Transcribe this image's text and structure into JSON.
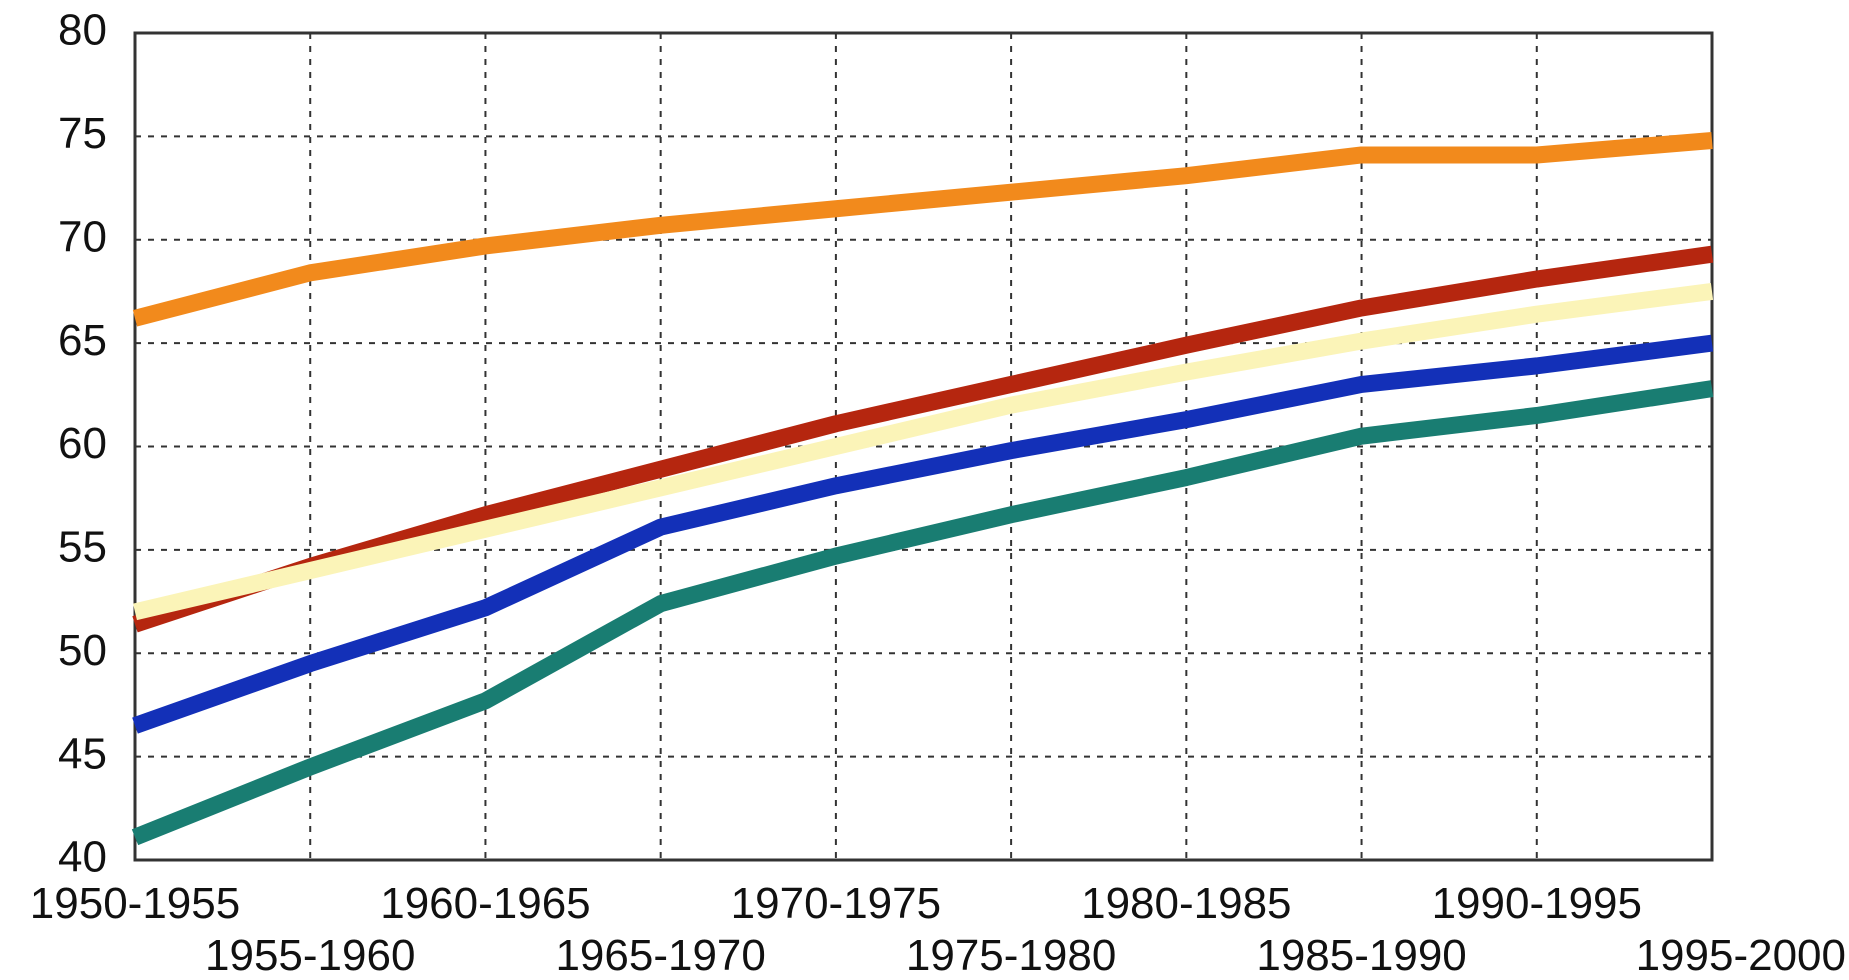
{
  "chart_data": {
    "type": "line",
    "x": [
      "1950-1955",
      "1955-1960",
      "1960-1965",
      "1965-1970",
      "1970-1975",
      "1975-1980",
      "1980-1985",
      "1985-1990",
      "1990-1995",
      "1995-2000"
    ],
    "ylim": [
      40,
      80
    ],
    "yticks": [
      40,
      45,
      50,
      55,
      60,
      65,
      70,
      75,
      80
    ],
    "grid": true,
    "series": [
      {
        "color": "#f28a1c",
        "values": [
          66.2,
          68.4,
          69.7,
          70.7,
          71.5,
          72.3,
          73.1,
          74.1,
          74.1,
          74.8
        ]
      },
      {
        "color": "#b5260f",
        "values": [
          51.4,
          54.2,
          56.7,
          58.9,
          61.1,
          63.0,
          64.9,
          66.7,
          68.1,
          69.3
        ]
      },
      {
        "color": "#fbf4b8",
        "values": [
          52.0,
          54.0,
          56.0,
          58.0,
          60.0,
          62.0,
          63.6,
          65.1,
          66.4,
          67.5
        ]
      },
      {
        "color": "#1330b8",
        "values": [
          46.5,
          49.5,
          52.2,
          56.1,
          58.1,
          59.8,
          61.3,
          63.0,
          63.9,
          65.0
        ]
      },
      {
        "color": "#197d72",
        "values": [
          41.1,
          44.5,
          47.7,
          52.4,
          54.7,
          56.7,
          58.5,
          60.5,
          61.5,
          62.8
        ]
      }
    ]
  }
}
